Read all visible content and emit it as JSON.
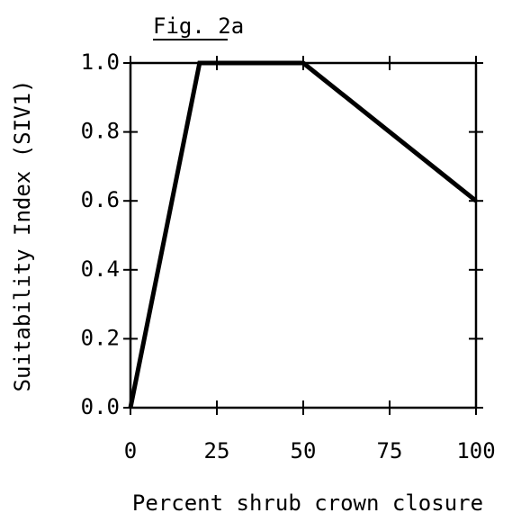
{
  "chart_data": {
    "type": "line",
    "title": "Fig. 2a",
    "x_label": "Percent shrub crown closure",
    "y_label": "Suitability Index (SIV1)",
    "x": [
      0,
      20,
      50,
      100
    ],
    "values": [
      0,
      1.0,
      1.0,
      0.6
    ],
    "color": "#000000",
    "xlim": [
      0,
      100
    ],
    "xticks": [
      0,
      25,
      50,
      75,
      100
    ],
    "ylim": [
      0,
      1
    ],
    "yticks": [
      {
        "value": 0,
        "label": "0.0"
      },
      0.2,
      0.4,
      0.6,
      0.8,
      {
        "value": 1,
        "label": "1.0"
      }
    ],
    "grid": false
  }
}
